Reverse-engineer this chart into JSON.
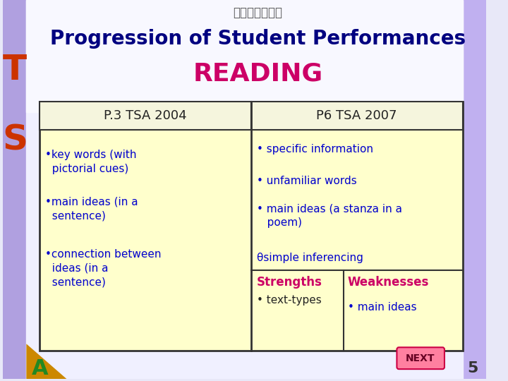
{
  "title_line1": "Progression of Student Performances",
  "title_line2": "READING",
  "title_line1_color": "#000080",
  "title_line2_color": "#cc0066",
  "bg_color": "#e8e8f8",
  "header_bg": "#ffffcc",
  "cell_bg": "#ffffcc",
  "table_border_color": "#333333",
  "col1_header": "P.3 TSA 2004",
  "col2_header": "P6 TSA 2007",
  "col1_items": [
    "•key words (with\n  pictorial cues)",
    "•main ideas (in a\n  sentence)",
    "•connection between\n  ideas (in a\n  sentence)"
  ],
  "col2_items": [
    "• specific information",
    "• unfamiliar words",
    "• main ideas (a stanza in a\n   poem)",
    "θsimple inferencing"
  ],
  "strengths_label": "Strengths",
  "strengths_items": [
    "• text-types"
  ],
  "weaknesses_label": "Weaknesses",
  "weaknesses_items": [
    "• main ideas"
  ],
  "strengths_color": "#cc0066",
  "weaknesses_color": "#cc0066",
  "blue_color": "#0000cc",
  "page_number": "5",
  "chinese_title": "全港性系統評估",
  "header_text_color": "#333333"
}
